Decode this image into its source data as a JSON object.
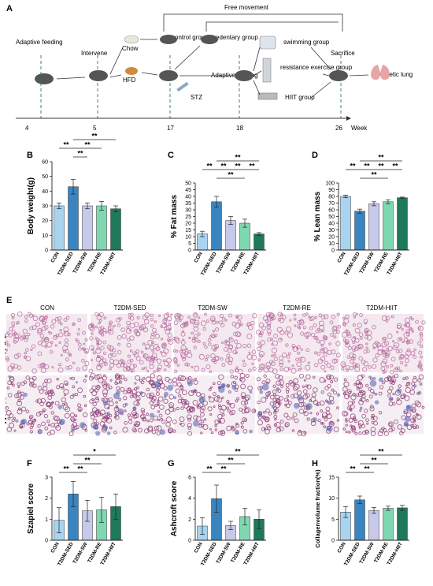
{
  "panels": {
    "A": {
      "letter": "A",
      "top_label": "Free movement",
      "steps": [
        "Adaptive feeding",
        "Intervene",
        "Chow",
        "HFD",
        "STZ",
        "control group",
        "sedentary group",
        "Adaptive training",
        "swimming group",
        "resistance exercise group",
        "HIIT group",
        "Sacrifice",
        "Diabetic lung"
      ],
      "timeline_ticks": [
        "4",
        "5",
        "17",
        "18",
        "26"
      ],
      "timeline_unit": "Week"
    },
    "E": {
      "letter": "E",
      "columns": [
        "CON",
        "T2DM-SED",
        "T2DM-SW",
        "T2DM-RE",
        "T2DM-HIIT"
      ],
      "rows": [
        "H & E",
        "Masson"
      ]
    }
  },
  "colors": {
    "CON": "#a8d4f0",
    "T2DM-SED": "#3a85bf",
    "T2DM-SW": "#c7c9ea",
    "T2DM-RE": "#7fd8b2",
    "T2DM-HIIT": "#1e7a5a",
    "he_bg": "#f3e9ef",
    "he_tissue": "#b76a9e",
    "masson_bg": "#f5eef3",
    "masson_tissue": "#8c3b73",
    "masson_blue": "#4a5fb0"
  },
  "chart_data": [
    {
      "id": "B",
      "letter": "B",
      "type": "bar",
      "ylabel": "Body weight(g)",
      "categories": [
        "CON",
        "T2DM-SED",
        "T2DM-SW",
        "T2DM-RE",
        "T2DM-HIIT"
      ],
      "values": [
        30,
        43,
        30,
        30,
        28
      ],
      "errors": [
        2,
        5,
        2,
        3,
        2
      ],
      "ylim": [
        0,
        60
      ],
      "yticks": [
        0,
        10,
        20,
        30,
        40,
        50,
        60
      ],
      "significance": [
        {
          "from": 0,
          "to": 1,
          "label": "**",
          "level": 1
        },
        {
          "from": 1,
          "to": 2,
          "label": "**",
          "level": 0
        },
        {
          "from": 1,
          "to": 3,
          "label": "**",
          "level": 1
        },
        {
          "from": 1,
          "to": 4,
          "label": "**",
          "level": 2
        }
      ]
    },
    {
      "id": "C",
      "letter": "C",
      "type": "bar",
      "ylabel": "% Fat mass",
      "categories": [
        "CON",
        "T2DM-SED",
        "T2DM-SW",
        "T2DM-RE",
        "T2DM-HIIT"
      ],
      "values": [
        12,
        36,
        22,
        20,
        12
      ],
      "errors": [
        2,
        4,
        3,
        3,
        1
      ],
      "ylim": [
        0,
        50
      ],
      "yticks": [
        0,
        5,
        10,
        15,
        20,
        25,
        30,
        35,
        40,
        45,
        50
      ],
      "significance": [
        {
          "from": 0,
          "to": 1,
          "label": "**",
          "level": 1
        },
        {
          "from": 1,
          "to": 2,
          "label": "**",
          "level": 1
        },
        {
          "from": 2,
          "to": 3,
          "label": "**",
          "level": 1
        },
        {
          "from": 3,
          "to": 4,
          "label": "**",
          "level": 1
        },
        {
          "from": 1,
          "to": 3,
          "label": "**",
          "level": 0
        },
        {
          "from": 1,
          "to": 4,
          "label": "**",
          "level": 2
        }
      ]
    },
    {
      "id": "D",
      "letter": "D",
      "type": "bar",
      "ylabel": "% Lean mass",
      "categories": [
        "CON",
        "T2DM-SED",
        "T2DM-SW",
        "T2DM-RE",
        "T2DM-HIIT"
      ],
      "values": [
        80,
        58,
        69,
        72,
        78
      ],
      "errors": [
        2,
        3,
        3,
        3,
        1
      ],
      "ylim": [
        0,
        100
      ],
      "yticks": [
        0,
        10,
        20,
        30,
        40,
        50,
        60,
        70,
        80,
        90,
        100
      ],
      "significance": [
        {
          "from": 0,
          "to": 1,
          "label": "**",
          "level": 1
        },
        {
          "from": 1,
          "to": 2,
          "label": "**",
          "level": 1
        },
        {
          "from": 2,
          "to": 3,
          "label": "**",
          "level": 1
        },
        {
          "from": 3,
          "to": 4,
          "label": "**",
          "level": 1
        },
        {
          "from": 1,
          "to": 3,
          "label": "**",
          "level": 0
        },
        {
          "from": 1,
          "to": 4,
          "label": "**",
          "level": 2
        }
      ]
    },
    {
      "id": "F",
      "letter": "F",
      "type": "bar",
      "ylabel": "Szapiel score",
      "categories": [
        "CON",
        "T2DM-SED",
        "T2DM-SW",
        "T2DM-RE",
        "T2DM-HIIT"
      ],
      "values": [
        0.95,
        2.2,
        1.4,
        1.45,
        1.6
      ],
      "errors": [
        0.6,
        0.6,
        0.5,
        0.6,
        0.6
      ],
      "ylim": [
        0,
        3
      ],
      "yticks": [
        0,
        1,
        2,
        3
      ],
      "significance": [
        {
          "from": 0,
          "to": 1,
          "label": "**",
          "level": 0
        },
        {
          "from": 1,
          "to": 2,
          "label": "**",
          "level": 0
        },
        {
          "from": 1,
          "to": 3,
          "label": "**",
          "level": 1
        },
        {
          "from": 1,
          "to": 4,
          "label": "*",
          "level": 2
        }
      ]
    },
    {
      "id": "G",
      "letter": "G",
      "type": "bar",
      "ylabel": "Ashcroft score",
      "categories": [
        "CON",
        "T2DM-SED",
        "T2DM-SW",
        "T2DM-RE",
        "T2DM-HIIT"
      ],
      "values": [
        1.35,
        3.95,
        1.4,
        2.25,
        2.0
      ],
      "errors": [
        0.8,
        1.3,
        0.4,
        0.8,
        0.9
      ],
      "ylim": [
        0,
        6
      ],
      "yticks": [
        0,
        2,
        4,
        6
      ],
      "significance": [
        {
          "from": 0,
          "to": 1,
          "label": "**",
          "level": 0
        },
        {
          "from": 1,
          "to": 2,
          "label": "**",
          "level": 0
        },
        {
          "from": 1,
          "to": 3,
          "label": "**",
          "level": 1
        },
        {
          "from": 1,
          "to": 4,
          "label": "**",
          "level": 2
        }
      ]
    },
    {
      "id": "H",
      "letter": "H",
      "type": "bar",
      "ylabel": "Collagenvolume fraction(%)",
      "categories": [
        "CON",
        "T2DM-SED",
        "T2DM-SW",
        "T2DM-RE",
        "T2DM-HIIT"
      ],
      "values": [
        6.7,
        9.6,
        7.1,
        7.6,
        7.7
      ],
      "errors": [
        1.3,
        0.9,
        0.7,
        0.5,
        0.6
      ],
      "ylim": [
        0,
        15
      ],
      "yticks": [
        0,
        5,
        10,
        15
      ],
      "significance": [
        {
          "from": 0,
          "to": 1,
          "label": "**",
          "level": 0
        },
        {
          "from": 1,
          "to": 2,
          "label": "**",
          "level": 0
        },
        {
          "from": 1,
          "to": 3,
          "label": "**",
          "level": 1
        },
        {
          "from": 1,
          "to": 4,
          "label": "**",
          "level": 2
        }
      ]
    }
  ]
}
